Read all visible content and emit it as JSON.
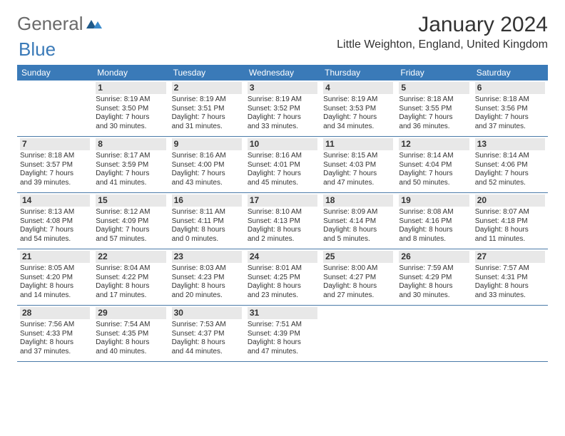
{
  "logo": {
    "text1": "General",
    "text2": "Blue"
  },
  "title": "January 2024",
  "location": "Little Weighton, England, United Kingdom",
  "colors": {
    "header_bg": "#3a7ab8",
    "header_text": "#ffffff",
    "daynum_bg": "#e8e8e8",
    "row_border": "#4a7aa8",
    "text": "#333333",
    "logo_gray": "#6a6a6a",
    "logo_blue": "#3a7ab8"
  },
  "day_names": [
    "Sunday",
    "Monday",
    "Tuesday",
    "Wednesday",
    "Thursday",
    "Friday",
    "Saturday"
  ],
  "weeks": [
    [
      null,
      {
        "n": "1",
        "sr": "Sunrise: 8:19 AM",
        "ss": "Sunset: 3:50 PM",
        "d1": "Daylight: 7 hours",
        "d2": "and 30 minutes."
      },
      {
        "n": "2",
        "sr": "Sunrise: 8:19 AM",
        "ss": "Sunset: 3:51 PM",
        "d1": "Daylight: 7 hours",
        "d2": "and 31 minutes."
      },
      {
        "n": "3",
        "sr": "Sunrise: 8:19 AM",
        "ss": "Sunset: 3:52 PM",
        "d1": "Daylight: 7 hours",
        "d2": "and 33 minutes."
      },
      {
        "n": "4",
        "sr": "Sunrise: 8:19 AM",
        "ss": "Sunset: 3:53 PM",
        "d1": "Daylight: 7 hours",
        "d2": "and 34 minutes."
      },
      {
        "n": "5",
        "sr": "Sunrise: 8:18 AM",
        "ss": "Sunset: 3:55 PM",
        "d1": "Daylight: 7 hours",
        "d2": "and 36 minutes."
      },
      {
        "n": "6",
        "sr": "Sunrise: 8:18 AM",
        "ss": "Sunset: 3:56 PM",
        "d1": "Daylight: 7 hours",
        "d2": "and 37 minutes."
      }
    ],
    [
      {
        "n": "7",
        "sr": "Sunrise: 8:18 AM",
        "ss": "Sunset: 3:57 PM",
        "d1": "Daylight: 7 hours",
        "d2": "and 39 minutes."
      },
      {
        "n": "8",
        "sr": "Sunrise: 8:17 AM",
        "ss": "Sunset: 3:59 PM",
        "d1": "Daylight: 7 hours",
        "d2": "and 41 minutes."
      },
      {
        "n": "9",
        "sr": "Sunrise: 8:16 AM",
        "ss": "Sunset: 4:00 PM",
        "d1": "Daylight: 7 hours",
        "d2": "and 43 minutes."
      },
      {
        "n": "10",
        "sr": "Sunrise: 8:16 AM",
        "ss": "Sunset: 4:01 PM",
        "d1": "Daylight: 7 hours",
        "d2": "and 45 minutes."
      },
      {
        "n": "11",
        "sr": "Sunrise: 8:15 AM",
        "ss": "Sunset: 4:03 PM",
        "d1": "Daylight: 7 hours",
        "d2": "and 47 minutes."
      },
      {
        "n": "12",
        "sr": "Sunrise: 8:14 AM",
        "ss": "Sunset: 4:04 PM",
        "d1": "Daylight: 7 hours",
        "d2": "and 50 minutes."
      },
      {
        "n": "13",
        "sr": "Sunrise: 8:14 AM",
        "ss": "Sunset: 4:06 PM",
        "d1": "Daylight: 7 hours",
        "d2": "and 52 minutes."
      }
    ],
    [
      {
        "n": "14",
        "sr": "Sunrise: 8:13 AM",
        "ss": "Sunset: 4:08 PM",
        "d1": "Daylight: 7 hours",
        "d2": "and 54 minutes."
      },
      {
        "n": "15",
        "sr": "Sunrise: 8:12 AM",
        "ss": "Sunset: 4:09 PM",
        "d1": "Daylight: 7 hours",
        "d2": "and 57 minutes."
      },
      {
        "n": "16",
        "sr": "Sunrise: 8:11 AM",
        "ss": "Sunset: 4:11 PM",
        "d1": "Daylight: 8 hours",
        "d2": "and 0 minutes."
      },
      {
        "n": "17",
        "sr": "Sunrise: 8:10 AM",
        "ss": "Sunset: 4:13 PM",
        "d1": "Daylight: 8 hours",
        "d2": "and 2 minutes."
      },
      {
        "n": "18",
        "sr": "Sunrise: 8:09 AM",
        "ss": "Sunset: 4:14 PM",
        "d1": "Daylight: 8 hours",
        "d2": "and 5 minutes."
      },
      {
        "n": "19",
        "sr": "Sunrise: 8:08 AM",
        "ss": "Sunset: 4:16 PM",
        "d1": "Daylight: 8 hours",
        "d2": "and 8 minutes."
      },
      {
        "n": "20",
        "sr": "Sunrise: 8:07 AM",
        "ss": "Sunset: 4:18 PM",
        "d1": "Daylight: 8 hours",
        "d2": "and 11 minutes."
      }
    ],
    [
      {
        "n": "21",
        "sr": "Sunrise: 8:05 AM",
        "ss": "Sunset: 4:20 PM",
        "d1": "Daylight: 8 hours",
        "d2": "and 14 minutes."
      },
      {
        "n": "22",
        "sr": "Sunrise: 8:04 AM",
        "ss": "Sunset: 4:22 PM",
        "d1": "Daylight: 8 hours",
        "d2": "and 17 minutes."
      },
      {
        "n": "23",
        "sr": "Sunrise: 8:03 AM",
        "ss": "Sunset: 4:23 PM",
        "d1": "Daylight: 8 hours",
        "d2": "and 20 minutes."
      },
      {
        "n": "24",
        "sr": "Sunrise: 8:01 AM",
        "ss": "Sunset: 4:25 PM",
        "d1": "Daylight: 8 hours",
        "d2": "and 23 minutes."
      },
      {
        "n": "25",
        "sr": "Sunrise: 8:00 AM",
        "ss": "Sunset: 4:27 PM",
        "d1": "Daylight: 8 hours",
        "d2": "and 27 minutes."
      },
      {
        "n": "26",
        "sr": "Sunrise: 7:59 AM",
        "ss": "Sunset: 4:29 PM",
        "d1": "Daylight: 8 hours",
        "d2": "and 30 minutes."
      },
      {
        "n": "27",
        "sr": "Sunrise: 7:57 AM",
        "ss": "Sunset: 4:31 PM",
        "d1": "Daylight: 8 hours",
        "d2": "and 33 minutes."
      }
    ],
    [
      {
        "n": "28",
        "sr": "Sunrise: 7:56 AM",
        "ss": "Sunset: 4:33 PM",
        "d1": "Daylight: 8 hours",
        "d2": "and 37 minutes."
      },
      {
        "n": "29",
        "sr": "Sunrise: 7:54 AM",
        "ss": "Sunset: 4:35 PM",
        "d1": "Daylight: 8 hours",
        "d2": "and 40 minutes."
      },
      {
        "n": "30",
        "sr": "Sunrise: 7:53 AM",
        "ss": "Sunset: 4:37 PM",
        "d1": "Daylight: 8 hours",
        "d2": "and 44 minutes."
      },
      {
        "n": "31",
        "sr": "Sunrise: 7:51 AM",
        "ss": "Sunset: 4:39 PM",
        "d1": "Daylight: 8 hours",
        "d2": "and 47 minutes."
      },
      null,
      null,
      null
    ]
  ]
}
